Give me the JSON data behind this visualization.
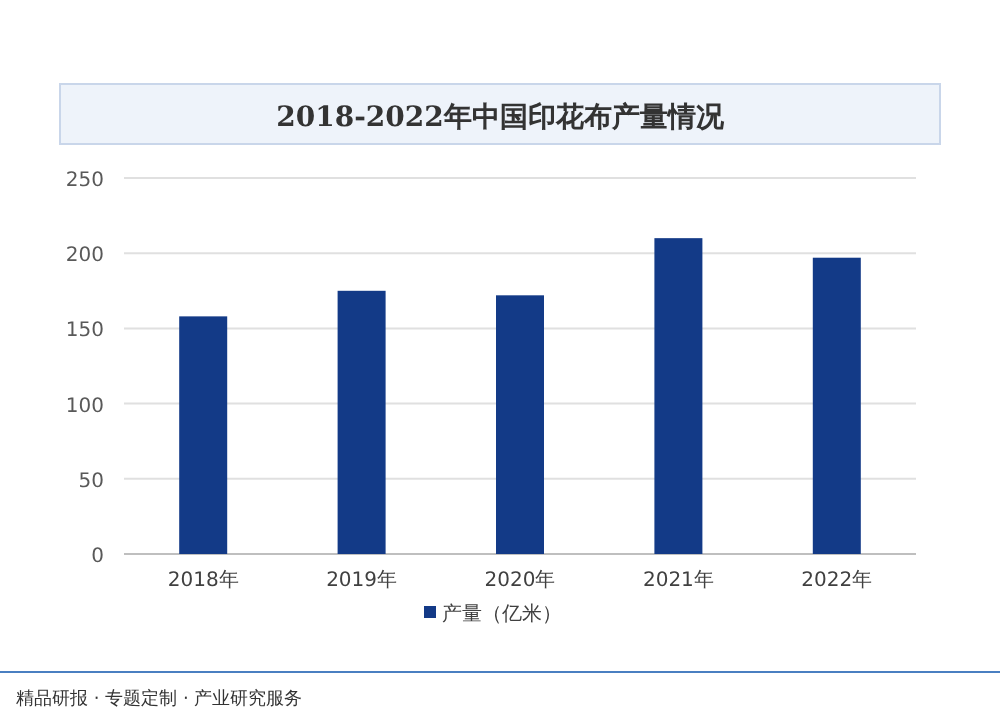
{
  "chart_data": {
    "type": "bar",
    "title": "2018-2022年中国印花布产量情况",
    "categories": [
      "2018年",
      "2019年",
      "2020年",
      "2021年",
      "2022年"
    ],
    "series": [
      {
        "name": "产量（亿米）",
        "color": "#133a87",
        "values": [
          158,
          175,
          172,
          210,
          197
        ]
      }
    ],
    "ylim": [
      0,
      250
    ],
    "yticks": [
      0,
      50,
      100,
      150,
      200,
      250
    ],
    "grid": "y",
    "legend": "bottom",
    "annotations": [
      "精品研报 · 专题定制 · 产业研究服务"
    ]
  }
}
